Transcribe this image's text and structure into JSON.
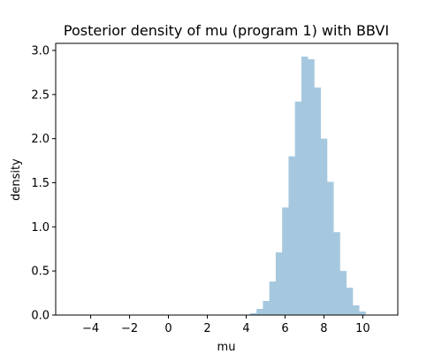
{
  "chart_data": {
    "type": "bar",
    "subtype": "histogram",
    "title": "Posterior density of mu (program 1) with BBVI",
    "xlabel": "mu",
    "ylabel": "density",
    "xlim": [
      -5.8,
      11.8
    ],
    "ylim": [
      0,
      3.08
    ],
    "xticks": [
      -4,
      -2,
      0,
      2,
      4,
      6,
      8,
      10
    ],
    "xtick_labels": [
      "−4",
      "−2",
      "0",
      "2",
      "4",
      "6",
      "8",
      "10"
    ],
    "yticks": [
      0.0,
      0.5,
      1.0,
      1.5,
      2.0,
      2.5,
      3.0
    ],
    "ytick_labels": [
      "0.0",
      "0.5",
      "1.0",
      "1.5",
      "2.0",
      "2.5",
      "3.0"
    ],
    "bar_color": "#a6c8df",
    "bin_width": 0.33,
    "bin_starts": [
      -5.0,
      4.2,
      4.53,
      4.86,
      5.19,
      5.52,
      5.85,
      6.18,
      6.51,
      6.84,
      7.17,
      7.5,
      7.83,
      8.16,
      8.49,
      8.82,
      9.15,
      9.48,
      9.81
    ],
    "values": [
      0.003,
      0.02,
      0.07,
      0.16,
      0.38,
      0.71,
      1.22,
      1.8,
      2.42,
      2.93,
      2.9,
      2.58,
      2.0,
      1.51,
      0.94,
      0.5,
      0.31,
      0.11,
      0.04
    ],
    "grid": false,
    "legend": "none"
  }
}
